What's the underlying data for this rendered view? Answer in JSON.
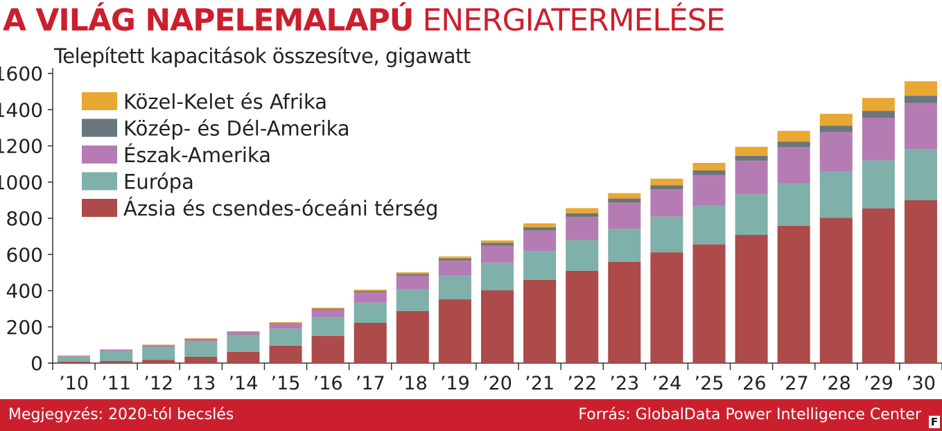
{
  "header": {
    "title_bold": "A VILÁG NAPELEMALAPÚ",
    "title_light": "ENERGIATERMELÉSE",
    "title_color": "#cc1f2d",
    "subtitle": "Telepített kapacitások összesítve, gigawatt"
  },
  "footer": {
    "note": "Megjegyzés: 2020-tól becslés",
    "source": "Forrás: GlobalData Power Intelligence Center",
    "bar_color": "#cc1f2d",
    "brand_letter": "F"
  },
  "chart_data": {
    "type": "bar",
    "stacked": true,
    "categories": [
      "’10",
      "’11",
      "’12",
      "’13",
      "’14",
      "’15",
      "’16",
      "’17",
      "’18",
      "’19",
      "’20",
      "’21",
      "’22",
      "’23",
      "’24",
      "’25",
      "’26",
      "’27",
      "’28",
      "’29",
      "’30"
    ],
    "ylim": [
      0,
      1600
    ],
    "yticks": [
      0,
      200,
      400,
      600,
      800,
      1000,
      1200,
      1400,
      1600
    ],
    "grid": false,
    "legend_position": "top-left",
    "series": [
      {
        "name": "Ázsia és csendes-óceáni térség",
        "color": "#ad4a4a",
        "values": [
          8,
          12,
          18,
          35,
          62,
          96,
          150,
          222,
          288,
          352,
          402,
          460,
          510,
          560,
          612,
          656,
          708,
          758,
          803,
          855,
          900
        ]
      },
      {
        "name": "Európa",
        "color": "#7fb0aa",
        "values": [
          28,
          55,
          72,
          85,
          90,
          95,
          105,
          112,
          120,
          132,
          152,
          160,
          170,
          182,
          198,
          215,
          225,
          235,
          255,
          265,
          282
        ]
      },
      {
        "name": "Észak-Amerika",
        "color": "#b57cb4",
        "values": [
          3,
          6,
          8,
          12,
          17,
          27,
          40,
          58,
          75,
          82,
          95,
          112,
          128,
          145,
          150,
          168,
          185,
          200,
          218,
          235,
          255
        ]
      },
      {
        "name": "Közép- és Dél-Amerika",
        "color": "#6a767d",
        "values": [
          1,
          1,
          1,
          2,
          3,
          3,
          5,
          7,
          10,
          12,
          15,
          18,
          20,
          22,
          23,
          25,
          27,
          30,
          35,
          38,
          40
        ]
      },
      {
        "name": "Közel-Kelet és Afrika",
        "color": "#e9a834",
        "values": [
          2,
          2,
          3,
          3,
          4,
          5,
          6,
          7,
          9,
          11,
          14,
          22,
          28,
          30,
          36,
          42,
          50,
          60,
          66,
          72,
          80
        ]
      }
    ]
  }
}
